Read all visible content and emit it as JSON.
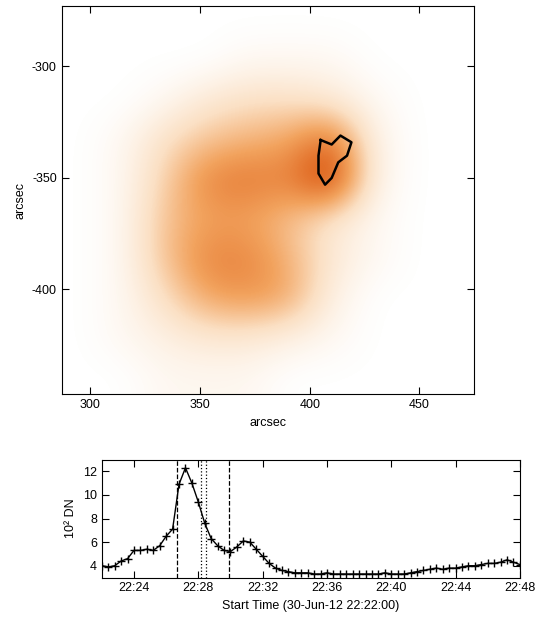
{
  "chart_data": [
    {
      "type": "heatmap",
      "x_label": "arcsec",
      "y_label": "arcsec",
      "xlim": [
        287,
        475
      ],
      "ylim": [
        -447,
        -273
      ],
      "xticks": [
        300,
        350,
        400,
        450
      ],
      "yticks": [
        -300,
        -350,
        -400
      ],
      "cell_range": [
        0,
        10
      ],
      "cells": [
        [
          0,
          0,
          0,
          0,
          0,
          0,
          0,
          0,
          0,
          0
        ],
        [
          0,
          0,
          0,
          0,
          0.5,
          0.5,
          0.5,
          0,
          0,
          0
        ],
        [
          0,
          0,
          0.5,
          1.5,
          2,
          2,
          1.5,
          0.5,
          0,
          0
        ],
        [
          0,
          0.5,
          2,
          3,
          3.5,
          4,
          6,
          1,
          0,
          0
        ],
        [
          0,
          0.5,
          2.5,
          5,
          5.5,
          5,
          8,
          1,
          0,
          0
        ],
        [
          0,
          0.5,
          3,
          4,
          4,
          3,
          1.5,
          0.5,
          0,
          0
        ],
        [
          0,
          0.5,
          3,
          5,
          5,
          3.5,
          1.5,
          0.5,
          0,
          0
        ],
        [
          0,
          0.5,
          2,
          4,
          4.5,
          4,
          1,
          0,
          0,
          0
        ],
        [
          0,
          0.5,
          1,
          1.5,
          1.5,
          1,
          0.5,
          0,
          0,
          0
        ],
        [
          0,
          0,
          0.5,
          0.5,
          0.5,
          0,
          0,
          0,
          0,
          0
        ]
      ],
      "contour": {
        "x": [
          405,
          410,
          414,
          419,
          417,
          413,
          410,
          407,
          404,
          404
        ],
        "y": [
          -333,
          -335,
          -331,
          -334,
          -340,
          -343,
          -350,
          -353,
          -348,
          -340
        ]
      },
      "color": "#000000"
    },
    {
      "type": "line",
      "x_label": "Start Time (30-Jun-12 22:22:00)",
      "y_label": "10² DN",
      "xlim": [
        0,
        26
      ],
      "ylim": [
        3,
        13
      ],
      "xticks": [
        {
          "value": 2,
          "label": "22:24"
        },
        {
          "value": 6,
          "label": "22:28"
        },
        {
          "value": 10,
          "label": "22:32"
        },
        {
          "value": 14,
          "label": "22:36"
        },
        {
          "value": 18,
          "label": "22:40"
        },
        {
          "value": 22,
          "label": "22:44"
        },
        {
          "value": 26,
          "label": "22:48"
        }
      ],
      "yticks": [
        4,
        6,
        8,
        10,
        12
      ],
      "x": [
        0.0,
        0.4,
        0.8,
        1.2,
        1.6,
        2.0,
        2.4,
        2.8,
        3.2,
        3.6,
        4.0,
        4.4,
        4.8,
        5.2,
        5.6,
        6.0,
        6.4,
        6.8,
        7.2,
        7.6,
        8.0,
        8.4,
        8.8,
        9.2,
        9.6,
        10.0,
        10.4,
        10.8,
        11.2,
        11.6,
        12.0,
        12.4,
        12.8,
        13.2,
        13.6,
        14.0,
        14.4,
        14.8,
        15.2,
        15.6,
        16.0,
        16.4,
        16.8,
        17.2,
        17.6,
        18.0,
        18.4,
        18.8,
        19.2,
        19.6,
        20.0,
        20.4,
        20.8,
        21.2,
        21.6,
        22.0,
        22.4,
        22.8,
        23.2,
        23.6,
        24.0,
        24.4,
        24.8,
        25.2,
        25.6,
        26.0
      ],
      "values": [
        4.0,
        3.9,
        4.0,
        4.4,
        4.6,
        5.3,
        5.3,
        5.4,
        5.3,
        5.7,
        6.5,
        7.1,
        10.9,
        12.3,
        11.0,
        9.4,
        7.6,
        6.3,
        5.7,
        5.3,
        5.2,
        5.6,
        6.1,
        6.0,
        5.4,
        4.8,
        4.2,
        3.8,
        3.6,
        3.5,
        3.4,
        3.4,
        3.4,
        3.3,
        3.3,
        3.4,
        3.3,
        3.3,
        3.3,
        3.3,
        3.3,
        3.3,
        3.3,
        3.3,
        3.4,
        3.3,
        3.3,
        3.3,
        3.4,
        3.5,
        3.6,
        3.7,
        3.8,
        3.7,
        3.8,
        3.8,
        3.9,
        4.0,
        4.0,
        4.1,
        4.2,
        4.2,
        4.3,
        4.5,
        4.3,
        4.1
      ],
      "marker": "+",
      "line_style": "solid",
      "color": "#000000",
      "vlines_dashed": [
        4.65,
        7.9
      ],
      "vlines_dotted": [
        6.15,
        6.45
      ]
    }
  ]
}
